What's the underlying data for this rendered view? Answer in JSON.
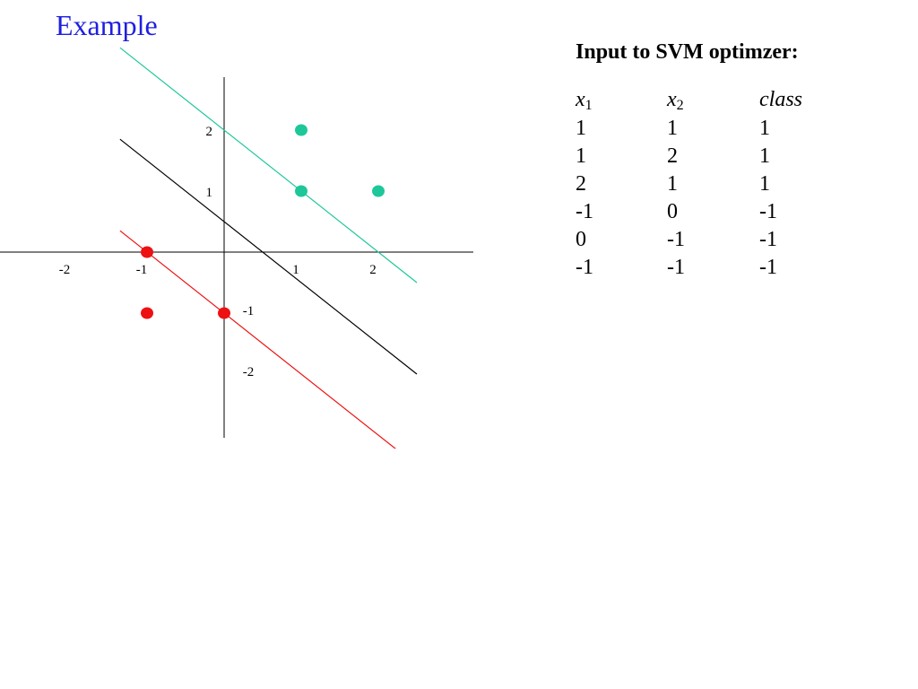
{
  "title": "Example",
  "panel": {
    "heading": "Input to SVM optimzer:",
    "columns": [
      {
        "base": "x",
        "sub": "1"
      },
      {
        "base": "x",
        "sub": "2"
      },
      {
        "base": "class",
        "sub": ""
      }
    ],
    "rows": [
      [
        "1",
        "1",
        "1"
      ],
      [
        "1",
        "2",
        "1"
      ],
      [
        "2",
        "1",
        "1"
      ],
      [
        "-1",
        "0",
        "-1"
      ],
      [
        "0",
        "-1",
        "-1"
      ],
      [
        "-1",
        "-1",
        "-1"
      ]
    ]
  },
  "chart_data": {
    "type": "scatter",
    "x_ticks": [
      "-2",
      "-1",
      "1",
      "2"
    ],
    "y_ticks": [
      "2",
      "1",
      "-1",
      "-2"
    ],
    "series": [
      {
        "color": "#1ec79a",
        "points": [
          [
            1,
            1
          ],
          [
            1,
            2
          ],
          [
            2,
            1
          ]
        ]
      },
      {
        "color": "#ee1111",
        "points": [
          [
            -1,
            0
          ],
          [
            0,
            -1
          ],
          [
            -1,
            -1
          ]
        ]
      }
    ],
    "lines": [
      {
        "color": "#1ec79a",
        "equation": "x1 + x2 = 2"
      },
      {
        "color": "#000000",
        "equation": "x1 + x2 = 0.5"
      },
      {
        "color": "#ee1111",
        "equation": "x1 + x2 = -1"
      }
    ]
  },
  "colors": {
    "title": "#1f1fe0"
  }
}
